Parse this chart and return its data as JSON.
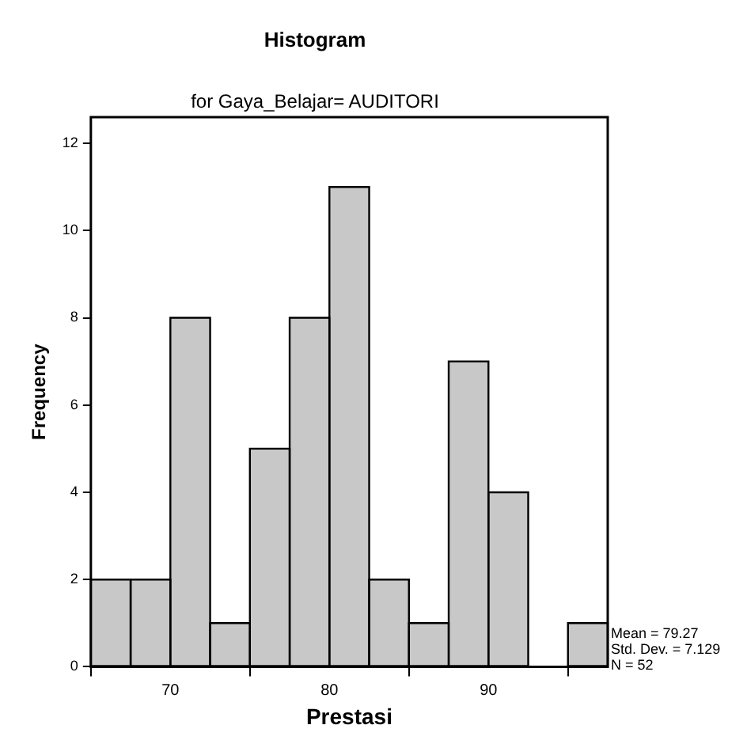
{
  "chart_data": {
    "type": "histogram",
    "title": "Histogram",
    "subtitle": "for Gaya_Belajar= AUDITORI",
    "xlabel": "Prestasi",
    "ylabel": "Frequency",
    "bins": [
      65,
      67.5,
      70,
      72.5,
      75,
      77.5,
      80,
      82.5,
      85,
      87.5,
      90,
      92.5,
      95,
      97.5
    ],
    "values": [
      2,
      2,
      8,
      1,
      5,
      8,
      11,
      2,
      1,
      7,
      4,
      0,
      1
    ],
    "color": "#c8c8c8",
    "xlim": [
      65,
      97.5
    ],
    "xticks": [
      70,
      80,
      90
    ],
    "ylim": [
      0,
      12.6
    ],
    "yticks": [
      0,
      2,
      4,
      6,
      8,
      10,
      12
    ],
    "grid": false,
    "legend": false,
    "annotations": [
      "Mean = 79.27",
      "Std. Dev. = 7.129",
      "N = 52"
    ]
  }
}
